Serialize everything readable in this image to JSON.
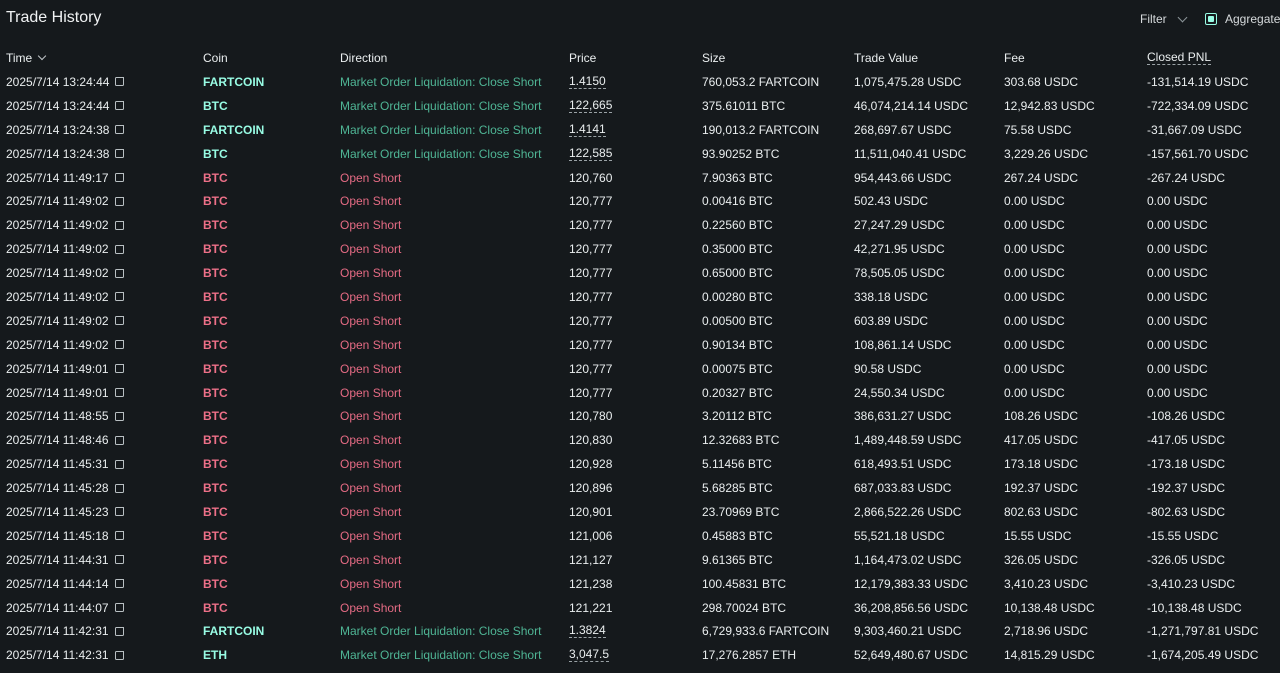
{
  "header": {
    "title": "Trade History",
    "filter_label": "Filter",
    "aggregate_label": "Aggregate"
  },
  "columns": [
    "Time",
    "Coin",
    "Direction",
    "Price",
    "Size",
    "Trade Value",
    "Fee",
    "Closed PNL"
  ],
  "colors": {
    "background": "#15191c",
    "accent": "#98fce4",
    "long_green": "#4fb595",
    "short_red": "#e56b84"
  },
  "rows": [
    {
      "time": "2025/7/14 13:24:44",
      "coin": "FARTCOIN",
      "coin_side": "green",
      "direction": "Market Order Liquidation: Close Short",
      "dir_side": "green",
      "price": "1.4150",
      "price_link": true,
      "size": "760,053.2 FARTCOIN",
      "value": "1,075,475.28 USDC",
      "fee": "303.68 USDC",
      "pnl": "-131,514.19 USDC"
    },
    {
      "time": "2025/7/14 13:24:44",
      "coin": "BTC",
      "coin_side": "green",
      "direction": "Market Order Liquidation: Close Short",
      "dir_side": "green",
      "price": "122,665",
      "price_link": true,
      "size": "375.61011 BTC",
      "value": "46,074,214.14 USDC",
      "fee": "12,942.83 USDC",
      "pnl": "-722,334.09 USDC"
    },
    {
      "time": "2025/7/14 13:24:38",
      "coin": "FARTCOIN",
      "coin_side": "green",
      "direction": "Market Order Liquidation: Close Short",
      "dir_side": "green",
      "price": "1.4141",
      "price_link": true,
      "size": "190,013.2 FARTCOIN",
      "value": "268,697.67 USDC",
      "fee": "75.58 USDC",
      "pnl": "-31,667.09 USDC"
    },
    {
      "time": "2025/7/14 13:24:38",
      "coin": "BTC",
      "coin_side": "green",
      "direction": "Market Order Liquidation: Close Short",
      "dir_side": "green",
      "price": "122,585",
      "price_link": true,
      "size": "93.90252 BTC",
      "value": "11,511,040.41 USDC",
      "fee": "3,229.26 USDC",
      "pnl": "-157,561.70 USDC"
    },
    {
      "time": "2025/7/14 11:49:17",
      "coin": "BTC",
      "coin_side": "red",
      "direction": "Open Short",
      "dir_side": "red",
      "price": "120,760",
      "price_link": false,
      "size": "7.90363 BTC",
      "value": "954,443.66 USDC",
      "fee": "267.24 USDC",
      "pnl": "-267.24 USDC"
    },
    {
      "time": "2025/7/14 11:49:02",
      "coin": "BTC",
      "coin_side": "red",
      "direction": "Open Short",
      "dir_side": "red",
      "price": "120,777",
      "price_link": false,
      "size": "0.00416 BTC",
      "value": "502.43 USDC",
      "fee": "0.00 USDC",
      "pnl": "0.00 USDC"
    },
    {
      "time": "2025/7/14 11:49:02",
      "coin": "BTC",
      "coin_side": "red",
      "direction": "Open Short",
      "dir_side": "red",
      "price": "120,777",
      "price_link": false,
      "size": "0.22560 BTC",
      "value": "27,247.29 USDC",
      "fee": "0.00 USDC",
      "pnl": "0.00 USDC"
    },
    {
      "time": "2025/7/14 11:49:02",
      "coin": "BTC",
      "coin_side": "red",
      "direction": "Open Short",
      "dir_side": "red",
      "price": "120,777",
      "price_link": false,
      "size": "0.35000 BTC",
      "value": "42,271.95 USDC",
      "fee": "0.00 USDC",
      "pnl": "0.00 USDC"
    },
    {
      "time": "2025/7/14 11:49:02",
      "coin": "BTC",
      "coin_side": "red",
      "direction": "Open Short",
      "dir_side": "red",
      "price": "120,777",
      "price_link": false,
      "size": "0.65000 BTC",
      "value": "78,505.05 USDC",
      "fee": "0.00 USDC",
      "pnl": "0.00 USDC"
    },
    {
      "time": "2025/7/14 11:49:02",
      "coin": "BTC",
      "coin_side": "red",
      "direction": "Open Short",
      "dir_side": "red",
      "price": "120,777",
      "price_link": false,
      "size": "0.00280 BTC",
      "value": "338.18 USDC",
      "fee": "0.00 USDC",
      "pnl": "0.00 USDC"
    },
    {
      "time": "2025/7/14 11:49:02",
      "coin": "BTC",
      "coin_side": "red",
      "direction": "Open Short",
      "dir_side": "red",
      "price": "120,777",
      "price_link": false,
      "size": "0.00500 BTC",
      "value": "603.89 USDC",
      "fee": "0.00 USDC",
      "pnl": "0.00 USDC"
    },
    {
      "time": "2025/7/14 11:49:02",
      "coin": "BTC",
      "coin_side": "red",
      "direction": "Open Short",
      "dir_side": "red",
      "price": "120,777",
      "price_link": false,
      "size": "0.90134 BTC",
      "value": "108,861.14 USDC",
      "fee": "0.00 USDC",
      "pnl": "0.00 USDC"
    },
    {
      "time": "2025/7/14 11:49:01",
      "coin": "BTC",
      "coin_side": "red",
      "direction": "Open Short",
      "dir_side": "red",
      "price": "120,777",
      "price_link": false,
      "size": "0.00075 BTC",
      "value": "90.58 USDC",
      "fee": "0.00 USDC",
      "pnl": "0.00 USDC"
    },
    {
      "time": "2025/7/14 11:49:01",
      "coin": "BTC",
      "coin_side": "red",
      "direction": "Open Short",
      "dir_side": "red",
      "price": "120,777",
      "price_link": false,
      "size": "0.20327 BTC",
      "value": "24,550.34 USDC",
      "fee": "0.00 USDC",
      "pnl": "0.00 USDC"
    },
    {
      "time": "2025/7/14 11:48:55",
      "coin": "BTC",
      "coin_side": "red",
      "direction": "Open Short",
      "dir_side": "red",
      "price": "120,780",
      "price_link": false,
      "size": "3.20112 BTC",
      "value": "386,631.27 USDC",
      "fee": "108.26 USDC",
      "pnl": "-108.26 USDC"
    },
    {
      "time": "2025/7/14 11:48:46",
      "coin": "BTC",
      "coin_side": "red",
      "direction": "Open Short",
      "dir_side": "red",
      "price": "120,830",
      "price_link": false,
      "size": "12.32683 BTC",
      "value": "1,489,448.59 USDC",
      "fee": "417.05 USDC",
      "pnl": "-417.05 USDC"
    },
    {
      "time": "2025/7/14 11:45:31",
      "coin": "BTC",
      "coin_side": "red",
      "direction": "Open Short",
      "dir_side": "red",
      "price": "120,928",
      "price_link": false,
      "size": "5.11456 BTC",
      "value": "618,493.51 USDC",
      "fee": "173.18 USDC",
      "pnl": "-173.18 USDC"
    },
    {
      "time": "2025/7/14 11:45:28",
      "coin": "BTC",
      "coin_side": "red",
      "direction": "Open Short",
      "dir_side": "red",
      "price": "120,896",
      "price_link": false,
      "size": "5.68285 BTC",
      "value": "687,033.83 USDC",
      "fee": "192.37 USDC",
      "pnl": "-192.37 USDC"
    },
    {
      "time": "2025/7/14 11:45:23",
      "coin": "BTC",
      "coin_side": "red",
      "direction": "Open Short",
      "dir_side": "red",
      "price": "120,901",
      "price_link": false,
      "size": "23.70969 BTC",
      "value": "2,866,522.26 USDC",
      "fee": "802.63 USDC",
      "pnl": "-802.63 USDC"
    },
    {
      "time": "2025/7/14 11:45:18",
      "coin": "BTC",
      "coin_side": "red",
      "direction": "Open Short",
      "dir_side": "red",
      "price": "121,006",
      "price_link": false,
      "size": "0.45883 BTC",
      "value": "55,521.18 USDC",
      "fee": "15.55 USDC",
      "pnl": "-15.55 USDC"
    },
    {
      "time": "2025/7/14 11:44:31",
      "coin": "BTC",
      "coin_side": "red",
      "direction": "Open Short",
      "dir_side": "red",
      "price": "121,127",
      "price_link": false,
      "size": "9.61365 BTC",
      "value": "1,164,473.02 USDC",
      "fee": "326.05 USDC",
      "pnl": "-326.05 USDC"
    },
    {
      "time": "2025/7/14 11:44:14",
      "coin": "BTC",
      "coin_side": "red",
      "direction": "Open Short",
      "dir_side": "red",
      "price": "121,238",
      "price_link": false,
      "size": "100.45831 BTC",
      "value": "12,179,383.33 USDC",
      "fee": "3,410.23 USDC",
      "pnl": "-3,410.23 USDC"
    },
    {
      "time": "2025/7/14 11:44:07",
      "coin": "BTC",
      "coin_side": "red",
      "direction": "Open Short",
      "dir_side": "red",
      "price": "121,221",
      "price_link": false,
      "size": "298.70024 BTC",
      "value": "36,208,856.56 USDC",
      "fee": "10,138.48 USDC",
      "pnl": "-10,138.48 USDC"
    },
    {
      "time": "2025/7/14 11:42:31",
      "coin": "FARTCOIN",
      "coin_side": "green",
      "direction": "Market Order Liquidation: Close Short",
      "dir_side": "green",
      "price": "1.3824",
      "price_link": true,
      "size": "6,729,933.6 FARTCOIN",
      "value": "9,303,460.21 USDC",
      "fee": "2,718.96 USDC",
      "pnl": "-1,271,797.81 USDC"
    },
    {
      "time": "2025/7/14 11:42:31",
      "coin": "ETH",
      "coin_side": "green",
      "direction": "Market Order Liquidation: Close Short",
      "dir_side": "green",
      "price": "3,047.5",
      "price_link": true,
      "size": "17,276.2857 ETH",
      "value": "52,649,480.67 USDC",
      "fee": "14,815.29 USDC",
      "pnl": "-1,674,205.49 USDC"
    }
  ]
}
